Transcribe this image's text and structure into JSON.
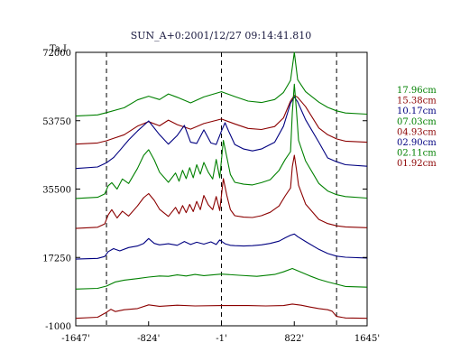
{
  "chart_data": {
    "type": "line",
    "title": "SUN_A+0:2001/12/27 09:14:41.810",
    "ylabel": "Ta,I",
    "xlabel": "",
    "xlim": [
      -1647,
      1645
    ],
    "ylim": [
      -1000,
      72000
    ],
    "x_ticks": [
      "-1647'",
      "-824'",
      "-1'",
      "822'",
      "1645'"
    ],
    "x_tick_values": [
      -1647,
      -824,
      -1,
      822,
      1645
    ],
    "y_ticks": [
      "72000",
      "53750",
      "35500",
      "17250",
      "-1000"
    ],
    "y_tick_values": [
      72000,
      53750,
      35500,
      17250,
      -1000
    ],
    "grid": false,
    "legend_position": "right",
    "dashed_lines_x": [
      -1300,
      -1,
      1300
    ],
    "series": [
      {
        "name": "17.96cm",
        "color": "#008000",
        "baseline": 55000,
        "x": [
          -1647,
          -1400,
          -1300,
          -1100,
          -950,
          -824,
          -700,
          -600,
          -500,
          -350,
          -200,
          -1,
          150,
          300,
          450,
          600,
          700,
          780,
          822,
          860,
          950,
          1100,
          1200,
          1300,
          1400,
          1645
        ],
        "y": [
          55000,
          55300,
          55900,
          57200,
          59300,
          60300,
          59400,
          60900,
          60000,
          58500,
          60100,
          61500,
          60200,
          59000,
          58600,
          59400,
          61300,
          64500,
          72000,
          64700,
          61500,
          58700,
          57300,
          56400,
          55800,
          55500
        ]
      },
      {
        "name": "15.38cm",
        "color": "#8b0000",
        "baseline": 47500,
        "x": [
          -1647,
          -1400,
          -1300,
          -1100,
          -950,
          -824,
          -700,
          -600,
          -500,
          -350,
          -200,
          -1,
          150,
          300,
          450,
          600,
          700,
          780,
          822,
          860,
          950,
          1100,
          1200,
          1300,
          1400,
          1645
        ],
        "y": [
          47500,
          47800,
          48400,
          50000,
          52300,
          53500,
          52400,
          53900,
          52700,
          51500,
          53000,
          54200,
          52900,
          51700,
          51400,
          52200,
          54500,
          59000,
          60500,
          60000,
          57500,
          51800,
          50000,
          48900,
          48300,
          48000
        ]
      },
      {
        "name": "10.17cm",
        "color": "#000080",
        "baseline": 41000,
        "x": [
          -1647,
          -1400,
          -1300,
          -1220,
          -1150,
          -1050,
          -950,
          -824,
          -700,
          -600,
          -500,
          -420,
          -350,
          -280,
          -200,
          -120,
          -60,
          -1,
          40,
          80,
          150,
          250,
          350,
          450,
          600,
          700,
          780,
          822,
          860,
          950,
          1100,
          1200,
          1300,
          1400,
          1645
        ],
        "y": [
          41000,
          41400,
          42500,
          43900,
          45800,
          48600,
          51000,
          53700,
          50000,
          47500,
          49800,
          52500,
          48000,
          47700,
          51300,
          47800,
          47400,
          51000,
          53200,
          51000,
          47400,
          46200,
          45700,
          46200,
          48000,
          52300,
          58400,
          60100,
          58800,
          54000,
          48000,
          43800,
          42800,
          42000,
          41600
        ]
      },
      {
        "name": "07.03cm",
        "color": "#008000",
        "baseline": 33000,
        "x": [
          -1647,
          -1400,
          -1320,
          -1280,
          -1240,
          -1180,
          -1120,
          -1050,
          -950,
          -880,
          -824,
          -760,
          -700,
          -600,
          -520,
          -480,
          -440,
          -400,
          -360,
          -320,
          -280,
          -240,
          -200,
          -150,
          -100,
          -60,
          -20,
          20,
          60,
          100,
          150,
          250,
          350,
          450,
          550,
          650,
          720,
          780,
          800,
          822,
          845,
          870,
          950,
          1100,
          1200,
          1300,
          1400,
          1645
        ],
        "y": [
          33000,
          33300,
          34200,
          36400,
          37200,
          35500,
          38200,
          37000,
          41000,
          44500,
          46000,
          43300,
          40000,
          37300,
          39800,
          37600,
          40500,
          38300,
          41200,
          38500,
          42000,
          39500,
          42600,
          40000,
          38200,
          43400,
          38500,
          48500,
          44000,
          39400,
          37300,
          36800,
          36600,
          37200,
          38000,
          40500,
          43400,
          45500,
          56000,
          63500,
          57000,
          48500,
          43000,
          37000,
          35000,
          34000,
          33500,
          33100
        ]
      },
      {
        "name": "04.93cm",
        "color": "#8b0000",
        "baseline": 25000,
        "x": [
          -1647,
          -1400,
          -1320,
          -1280,
          -1240,
          -1180,
          -1120,
          -1050,
          -950,
          -880,
          -824,
          -760,
          -700,
          -600,
          -520,
          -480,
          -440,
          -400,
          -360,
          -320,
          -280,
          -240,
          -200,
          -150,
          -100,
          -60,
          -20,
          20,
          60,
          100,
          150,
          250,
          350,
          450,
          550,
          650,
          720,
          780,
          800,
          822,
          845,
          870,
          950,
          1100,
          1200,
          1300,
          1400,
          1645
        ],
        "y": [
          25000,
          25300,
          26200,
          28600,
          30000,
          27800,
          29600,
          28300,
          31000,
          33200,
          34300,
          32500,
          30100,
          28200,
          30600,
          28900,
          31100,
          29200,
          31400,
          29500,
          32200,
          30000,
          33800,
          31300,
          30000,
          33500,
          29800,
          38300,
          33800,
          30000,
          28400,
          28000,
          27900,
          28400,
          29300,
          31000,
          33700,
          35800,
          41500,
          44500,
          41000,
          36500,
          31500,
          27400,
          26300,
          25700,
          25400,
          25200
        ]
      },
      {
        "name": "02.90cm",
        "color": "#000080",
        "baseline": 16800,
        "x": [
          -1647,
          -1400,
          -1320,
          -1280,
          -1220,
          -1150,
          -1050,
          -950,
          -880,
          -824,
          -760,
          -700,
          -600,
          -500,
          -420,
          -350,
          -280,
          -200,
          -120,
          -60,
          -20,
          40,
          100,
          150,
          250,
          350,
          450,
          550,
          650,
          720,
          780,
          822,
          860,
          950,
          1100,
          1200,
          1300,
          1400,
          1645
        ],
        "y": [
          16800,
          17000,
          17500,
          18800,
          19600,
          19000,
          19900,
          20300,
          21000,
          22300,
          21000,
          20600,
          20900,
          20500,
          21500,
          20700,
          21300,
          20800,
          21400,
          20700,
          21900,
          20900,
          20500,
          20400,
          20300,
          20400,
          20600,
          21000,
          21600,
          22500,
          23200,
          23500,
          22800,
          21500,
          19400,
          18300,
          17600,
          17300,
          17100
        ]
      },
      {
        "name": "02.11cm",
        "color": "#008000",
        "baseline": 8800,
        "x": [
          -1647,
          -1400,
          -1300,
          -1200,
          -1100,
          -950,
          -824,
          -700,
          -600,
          -500,
          -400,
          -300,
          -200,
          -1,
          200,
          400,
          600,
          700,
          800,
          900,
          1000,
          1100,
          1200,
          1300,
          1400,
          1645
        ],
        "y": [
          8800,
          9000,
          9600,
          10700,
          11200,
          11600,
          12000,
          12300,
          12200,
          12600,
          12300,
          12700,
          12400,
          12800,
          12500,
          12200,
          12700,
          13400,
          14300,
          13300,
          12300,
          11400,
          10700,
          10100,
          9500,
          9300
        ]
      },
      {
        "name": "01.92cm",
        "color": "#8b0000",
        "baseline": 1000,
        "x": [
          -1647,
          -1400,
          -1300,
          -1250,
          -1200,
          -1100,
          -950,
          -824,
          -700,
          -500,
          -300,
          -1,
          300,
          500,
          700,
          800,
          900,
          1000,
          1100,
          1200,
          1250,
          1300,
          1400,
          1645
        ],
        "y": [
          1000,
          1300,
          2600,
          3400,
          2800,
          3300,
          3600,
          4600,
          4200,
          4500,
          4300,
          4400,
          4400,
          4300,
          4400,
          4800,
          4500,
          4000,
          3600,
          3300,
          2900,
          1500,
          1100,
          1000
        ]
      }
    ]
  }
}
